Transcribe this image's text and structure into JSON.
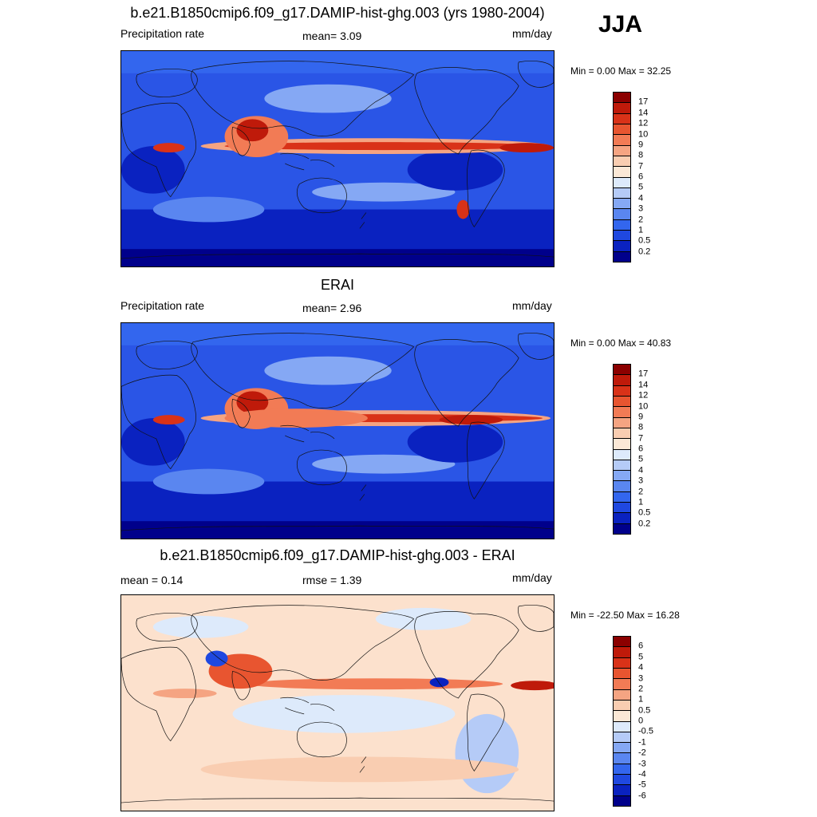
{
  "season": "JJA",
  "colors": {
    "precip_scale": [
      "#00008b",
      "#0a22c0",
      "#1f48e0",
      "#3366ee",
      "#5a86f0",
      "#85a8f4",
      "#b5cbf7",
      "#ddeafb",
      "#fbe8d6",
      "#f9cdb1",
      "#f5a482",
      "#f27b55",
      "#e85530",
      "#d93218",
      "#bf1a0a",
      "#8b0000"
    ],
    "diff_scale": [
      "#00008b",
      "#0a22c0",
      "#1f48e0",
      "#3366ee",
      "#5a86f0",
      "#85a8f4",
      "#b5cbf7",
      "#ddeafb",
      "#fbe8d6",
      "#f9cdb1",
      "#f5a482",
      "#f27b55",
      "#e85530",
      "#d93218",
      "#bf1a0a",
      "#8b0000"
    ],
    "ocean_base": "#2a55e6",
    "diff_base": "#fce1cd",
    "coast": "#111111"
  },
  "panels": [
    {
      "title": "b.e21.B1850cmip6.f09_g17.DAMIP-hist-ghg.003 (yrs 1980-2004)",
      "left_label": "Precipitation rate",
      "center_label": "mean=   3.09",
      "units": "mm/day",
      "minmax": "Min =   0.00 Max =  32.25",
      "colorbar_labels": [
        "17",
        "14",
        "12",
        "10",
        "9",
        "8",
        "7",
        "6",
        "5",
        "4",
        "3",
        "2",
        "1",
        "0.5",
        "0.2"
      ],
      "kind": "precip"
    },
    {
      "title": "ERAI",
      "left_label": "Precipitation rate",
      "center_label": "mean=   2.96",
      "units": "mm/day",
      "minmax": "Min =   0.00 Max =  40.83",
      "colorbar_labels": [
        "17",
        "14",
        "12",
        "10",
        "9",
        "8",
        "7",
        "6",
        "5",
        "4",
        "3",
        "2",
        "1",
        "0.5",
        "0.2"
      ],
      "kind": "precip"
    },
    {
      "title": "b.e21.B1850cmip6.f09_g17.DAMIP-hist-ghg.003 - ERAI",
      "left_label": "mean =   0.14",
      "center_label": "rmse =   1.39",
      "units": "mm/day",
      "minmax": "Min = -22.50 Max =  16.28",
      "colorbar_labels": [
        "6",
        "5",
        "4",
        "3",
        "2",
        "1",
        "0.5",
        "0",
        "-0.5",
        "-1",
        "-2",
        "-3",
        "-4",
        "-5",
        "-6"
      ],
      "kind": "diff"
    }
  ]
}
